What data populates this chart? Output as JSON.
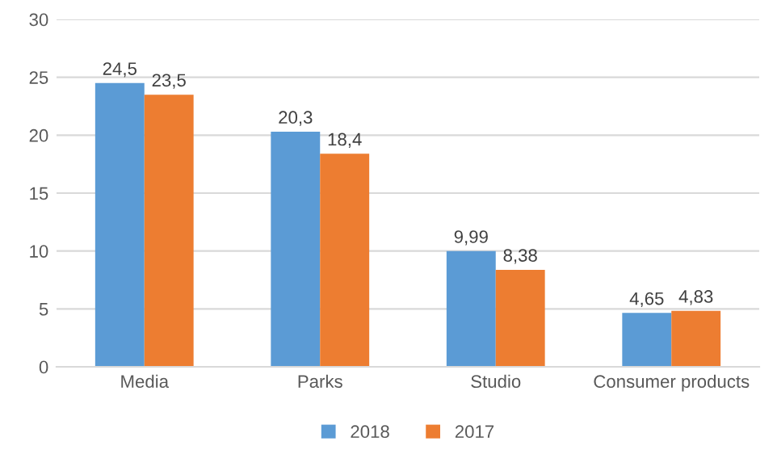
{
  "chart_data": {
    "type": "bar",
    "categories": [
      "Media",
      "Parks",
      "Studio",
      "Consumer products"
    ],
    "series": [
      {
        "name": "2018",
        "color": "#5b9bd5",
        "values": [
          24.5,
          20.3,
          9.99,
          4.65
        ],
        "value_labels": [
          "24,5",
          "20,3",
          "9,99",
          "4,65"
        ]
      },
      {
        "name": "2017",
        "color": "#ed7d31",
        "values": [
          23.5,
          18.4,
          8.38,
          4.83
        ],
        "value_labels": [
          "23,5",
          "18,4",
          "8,38",
          "4,83"
        ]
      }
    ],
    "ylim": [
      0,
      30
    ],
    "yticks": [
      0,
      5,
      10,
      15,
      20,
      25,
      30
    ],
    "grid": "y",
    "legend": "bottom"
  }
}
